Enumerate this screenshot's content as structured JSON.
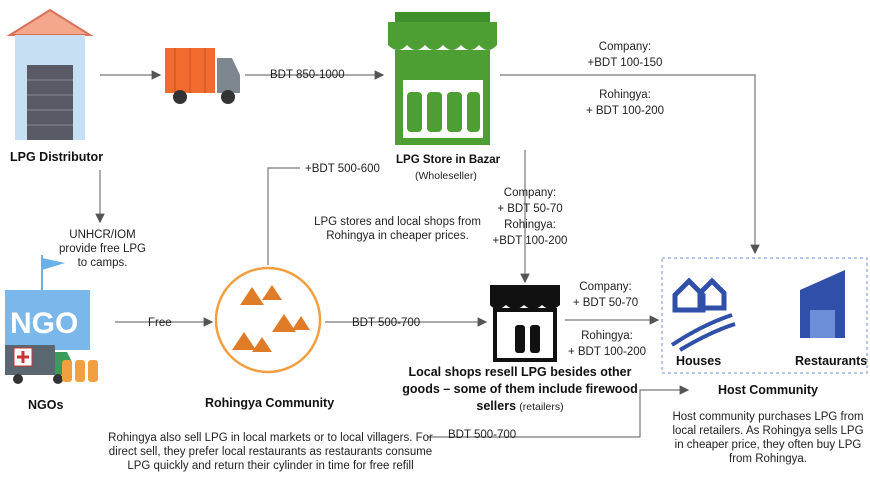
{
  "nodes": {
    "distributor": {
      "label": "LPG Distributor"
    },
    "store": {
      "label": "LPG Store in Bazar",
      "sublabel": "(Wholeseller)"
    },
    "ngo": {
      "icon": "NGO",
      "label": "NGOs"
    },
    "rohingya": {
      "label": "Rohingya Community"
    },
    "shop": {
      "label": "Local shops resell LPG besides other goods – some of them include firewood sellers",
      "sublabel": "(retailers)"
    },
    "host": {
      "label": "Host Community",
      "houses": "Houses",
      "restaurants": "Restaurants"
    }
  },
  "edges": {
    "distributor_store": {
      "label": "BDT 850-1000"
    },
    "store_host": {
      "company": "Company:",
      "company_price": "+BDT 100-150",
      "rohingya": "Rohingya:",
      "rohingya_price": "+ BDT 100-200"
    },
    "store_shop": {
      "company": "Company:",
      "company_price": "+ BDT 50-70",
      "rohingya": "Rohingya:",
      "rohingya_price": "+BDT 100-200"
    },
    "rohingya_store": {
      "label": "+BDT 500-600",
      "note": "LPG stores and local shops from Rohingya in cheaper prices."
    },
    "distributor_ngo": {
      "label": "UNHCR/IOM provide free LPG to camps."
    },
    "ngo_rohingya": {
      "label": "Free"
    },
    "rohingya_shop": {
      "label": "BDT 500-700"
    },
    "shop_host": {
      "company": "Company:",
      "company_price": "+ BDT 50-70",
      "rohingya": "Rohingya:",
      "rohingya_price": "+ BDT 100-200"
    },
    "rohingya_host": {
      "label": "BDT 500-700",
      "note": "Rohingya also sell LPG in local markets or to local villagers. For direct sell, they prefer local restaurants as restaurants consume LPG quickly and return their cylinder in time for free refill"
    }
  },
  "notes": {
    "host": "Host community purchases LPG from local retailers.  As Rohingya sells LPG in cheaper price, they often buy LPG from Rohingya."
  }
}
